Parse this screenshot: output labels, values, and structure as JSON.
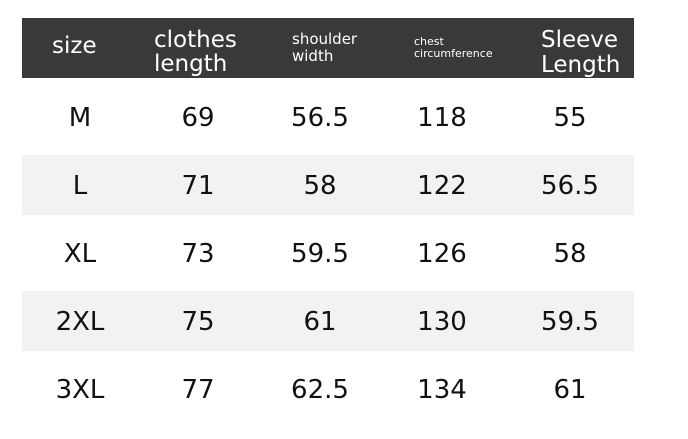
{
  "table": {
    "header": [
      "size",
      "clothes length",
      "shoulder width",
      "chest circumference",
      "Sleeve Length"
    ],
    "rows": [
      [
        "M",
        "69",
        "56.5",
        "118",
        "55"
      ],
      [
        "L",
        "71",
        "58",
        "122",
        "56.5"
      ],
      [
        "XL",
        "73",
        "59.5",
        "126",
        "58"
      ],
      [
        "2XL",
        "75",
        "61",
        "130",
        "59.5"
      ],
      [
        "3XL",
        "77",
        "62.5",
        "134",
        "61"
      ]
    ]
  }
}
